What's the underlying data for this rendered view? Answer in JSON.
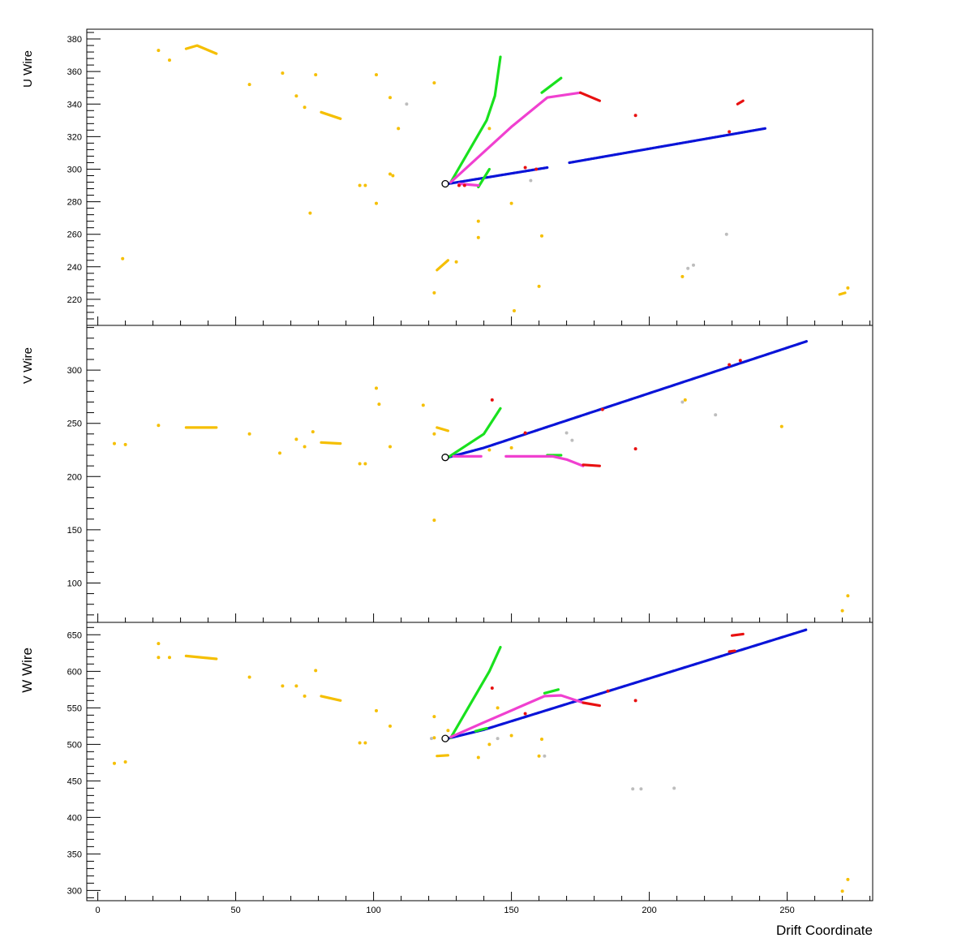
{
  "chart_data": {
    "type": "scatter",
    "xlabel": "Drift Coordinate",
    "xlim": [
      -4,
      281
    ],
    "x_ticks": [
      0,
      50,
      100,
      150,
      200,
      250
    ],
    "colors": {
      "yellow": "#f5bf00",
      "blue": "#0a14d8",
      "green": "#19e11e",
      "magenta": "#f040d0",
      "red": "#e81010",
      "gray": "#bdbdbd"
    },
    "panels": [
      {
        "ylabel": "U Wire",
        "ylim": [
          204,
          386
        ],
        "y_ticks": [
          220,
          240,
          260,
          280,
          300,
          320,
          340,
          360,
          380
        ],
        "vertex": {
          "x": 126,
          "y": 291
        },
        "series": [
          {
            "color": "blue",
            "segments": [
              [
                [
                  127,
                  291
                ],
                [
                  163,
                  301
                ]
              ],
              [
                [
                  171,
                  304
                ],
                [
                  242,
                  325
                ]
              ]
            ]
          },
          {
            "color": "green",
            "segments": [
              [
                [
                  128,
                  292
                ],
                [
                  141,
                  330
                ],
                [
                  144,
                  345
                ],
                [
                  146,
                  369
                ]
              ],
              [
                [
                  138,
                  289
                ],
                [
                  142,
                  300
                ]
              ]
            ]
          },
          {
            "color": "magenta",
            "segments": [
              [
                [
                  128,
                  292
                ],
                [
                  150,
                  326
                ],
                [
                  163,
                  344
                ],
                [
                  175,
                  347
                ]
              ],
              [
                [
                  131,
                  291
                ],
                [
                  138,
                  290
                ]
              ]
            ]
          },
          {
            "color": "green",
            "segments": [
              [
                [
                  161,
                  347
                ],
                [
                  168,
                  356
                ]
              ]
            ]
          },
          {
            "color": "red",
            "segments": [
              [
                [
                  175,
                  347
                ],
                [
                  182,
                  342
                ]
              ],
              [
                [
                  232,
                  340
                ],
                [
                  234,
                  342
                ]
              ]
            ]
          },
          {
            "color": "yellow",
            "segments": [
              [
                [
                  32,
                  374
                ],
                [
                  36,
                  376
                ],
                [
                  43,
                  371
                ]
              ],
              [
                [
                  81,
                  335
                ],
                [
                  88,
                  331
                ]
              ],
              [
                [
                  123,
                  238
                ],
                [
                  127,
                  244
                ]
              ],
              [
                [
                  269,
                  223
                ],
                [
                  271,
                  224
                ]
              ]
            ]
          },
          {
            "color": "yellow",
            "points": [
              [
                22,
                373
              ],
              [
                26,
                367
              ],
              [
                55,
                352
              ],
              [
                67,
                359
              ],
              [
                72,
                345
              ],
              [
                75,
                338
              ],
              [
                79,
                358
              ],
              [
                101,
                358
              ],
              [
                106,
                344
              ],
              [
                106,
                297
              ],
              [
                107,
                296
              ],
              [
                95,
                290
              ],
              [
                97,
                290
              ],
              [
                101,
                279
              ],
              [
                109,
                325
              ],
              [
                122,
                353
              ],
              [
                122,
                224
              ],
              [
                77,
                273
              ],
              [
                130,
                243
              ],
              [
                138,
                268
              ],
              [
                138,
                258
              ],
              [
                142,
                325
              ],
              [
                150,
                279
              ],
              [
                151,
                213
              ],
              [
                160,
                228
              ],
              [
                161,
                259
              ],
              [
                212,
                234
              ],
              [
                9,
                245
              ],
              [
                272,
                227
              ]
            ]
          },
          {
            "color": "red",
            "points": [
              [
                195,
                333
              ],
              [
                229,
                323
              ],
              [
                155,
                301
              ],
              [
                159,
                300
              ],
              [
                131,
                290
              ],
              [
                133,
                290
              ]
            ]
          },
          {
            "color": "gray",
            "points": [
              [
                112,
                340
              ],
              [
                157,
                293
              ],
              [
                214,
                239
              ],
              [
                216,
                241
              ],
              [
                228,
                260
              ]
            ]
          }
        ]
      },
      {
        "ylabel": "V Wire",
        "ylim": [
          63,
          342
        ],
        "y_ticks": [
          100,
          150,
          200,
          250,
          300
        ],
        "vertex": {
          "x": 126,
          "y": 218
        },
        "series": [
          {
            "color": "blue",
            "segments": [
              [
                [
                  127,
                  218
                ],
                [
                  140,
                  227
                ],
                [
                  257,
                  327
                ]
              ]
            ]
          },
          {
            "color": "green",
            "segments": [
              [
                [
                  127,
                  218
                ],
                [
                  140,
                  240
                ],
                [
                  146,
                  264
                ]
              ],
              [
                [
                  163,
                  220
                ],
                [
                  168,
                  220
                ]
              ]
            ]
          },
          {
            "color": "magenta",
            "segments": [
              [
                [
                  129,
                  219
                ],
                [
                  139,
                  219
                ]
              ],
              [
                [
                  148,
                  219
                ],
                [
                  165,
                  219
                ],
                [
                  170,
                  216
                ],
                [
                  176,
                  210
                ]
              ]
            ]
          },
          {
            "color": "red",
            "segments": [
              [
                [
                  176,
                  211
                ],
                [
                  182,
                  210
                ]
              ]
            ]
          },
          {
            "color": "yellow",
            "segments": [
              [
                [
                  32,
                  246
                ],
                [
                  43,
                  246
                ]
              ],
              [
                [
                  81,
                  232
                ],
                [
                  88,
                  231
                ]
              ],
              [
                [
                  123,
                  246
                ],
                [
                  127,
                  243
                ]
              ]
            ]
          },
          {
            "color": "yellow",
            "points": [
              [
                6,
                231
              ],
              [
                10,
                230
              ],
              [
                22,
                248
              ],
              [
                55,
                240
              ],
              [
                66,
                222
              ],
              [
                72,
                235
              ],
              [
                75,
                228
              ],
              [
                78,
                242
              ],
              [
                95,
                212
              ],
              [
                97,
                212
              ],
              [
                101,
                283
              ],
              [
                102,
                268
              ],
              [
                106,
                228
              ],
              [
                118,
                267
              ],
              [
                122,
                159
              ],
              [
                122,
                240
              ],
              [
                248,
                247
              ],
              [
                213,
                272
              ],
              [
                270,
                74
              ],
              [
                272,
                88
              ],
              [
                142,
                225
              ],
              [
                150,
                227
              ]
            ]
          },
          {
            "color": "red",
            "points": [
              [
                143,
                272
              ],
              [
                195,
                226
              ],
              [
                155,
                241
              ],
              [
                229,
                305
              ],
              [
                233,
                309
              ],
              [
                183,
                263
              ]
            ]
          },
          {
            "color": "gray",
            "points": [
              [
                170,
                241
              ],
              [
                172,
                234
              ],
              [
                212,
                270
              ],
              [
                224,
                258
              ]
            ]
          }
        ]
      },
      {
        "ylabel": "W Wire",
        "ylim": [
          286,
          667
        ],
        "y_ticks": [
          300,
          350,
          400,
          450,
          500,
          550,
          600,
          650
        ],
        "vertex": {
          "x": 126,
          "y": 508
        },
        "series": [
          {
            "color": "blue",
            "segments": [
              [
                [
                  127,
                  508
                ],
                [
                  140,
                  520
                ],
                [
                  257,
                  657
                ]
              ]
            ]
          },
          {
            "color": "green",
            "segments": [
              [
                [
                  128,
                  509
                ],
                [
                  142,
                  600
                ],
                [
                  146,
                  633
                ]
              ],
              [
                [
                  137,
                  518
                ],
                [
                  141,
                  522
                ]
              ],
              [
                [
                  162,
                  570
                ],
                [
                  167,
                  575
                ]
              ]
            ]
          },
          {
            "color": "magenta",
            "segments": [
              [
                [
                  128,
                  510
                ],
                [
                  140,
                  530
                ],
                [
                  162,
                  566
                ],
                [
                  168,
                  567
                ],
                [
                  176,
                  557
                ]
              ]
            ]
          },
          {
            "color": "red",
            "segments": [
              [
                [
                  176,
                  557
                ],
                [
                  182,
                  553
                ]
              ],
              [
                [
                  230,
                  649
                ],
                [
                  234,
                  651
                ]
              ],
              [
                [
                  229,
                  627
                ],
                [
                  231,
                  628
                ]
              ]
            ]
          },
          {
            "color": "yellow",
            "segments": [
              [
                [
                  32,
                  621
                ],
                [
                  43,
                  617
                ]
              ],
              [
                [
                  81,
                  566
                ],
                [
                  88,
                  560
                ]
              ],
              [
                [
                  123,
                  484
                ],
                [
                  127,
                  485
                ]
              ]
            ]
          },
          {
            "color": "yellow",
            "points": [
              [
                6,
                474
              ],
              [
                10,
                476
              ],
              [
                22,
                638
              ],
              [
                22,
                619
              ],
              [
                26,
                619
              ],
              [
                55,
                592
              ],
              [
                67,
                580
              ],
              [
                72,
                580
              ],
              [
                75,
                566
              ],
              [
                79,
                601
              ],
              [
                95,
                502
              ],
              [
                97,
                502
              ],
              [
                101,
                546
              ],
              [
                106,
                525
              ],
              [
                122,
                538
              ],
              [
                122,
                509
              ],
              [
                127,
                519
              ],
              [
                138,
                482
              ],
              [
                142,
                500
              ],
              [
                150,
                512
              ],
              [
                160,
                484
              ],
              [
                161,
                507
              ],
              [
                270,
                299
              ],
              [
                272,
                315
              ],
              [
                145,
                550
              ]
            ]
          },
          {
            "color": "red",
            "points": [
              [
                143,
                577
              ],
              [
                195,
                560
              ],
              [
                155,
                542
              ],
              [
                185,
                573
              ]
            ]
          },
          {
            "color": "gray",
            "points": [
              [
                121,
                508
              ],
              [
                145,
                508
              ],
              [
                162,
                484
              ],
              [
                194,
                439
              ],
              [
                197,
                439
              ],
              [
                209,
                440
              ]
            ]
          }
        ]
      }
    ]
  }
}
